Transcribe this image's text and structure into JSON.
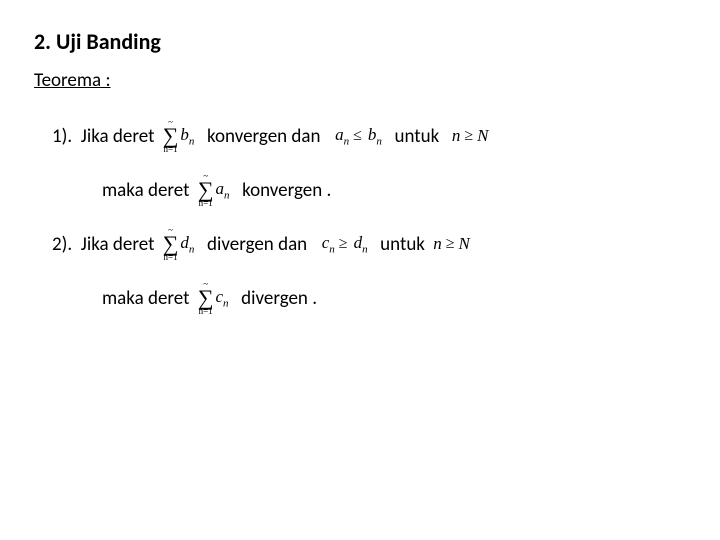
{
  "title": "2.  Uji Banding",
  "subtitle": "Teorema :",
  "words": {
    "item1_pre": "1).  Jika deret ",
    "item2_pre": "2).  Jika deret ",
    "maka_deret": "maka deret ",
    "konv_dan": "  konvergen dan  ",
    "konv_dot": "  konvergen .",
    "div_dan": "  divergen dan  ",
    "div_dot": "  divergen .",
    "untuk": "  untuk  ",
    "untuk2": "  untuk "
  },
  "math": {
    "sigma_lower_n1": "n=1",
    "sigma_upper": "~",
    "b_n": "b",
    "a_n": "a",
    "d_n": "d",
    "c_n": "c",
    "sub_n": "n",
    "le": "≤",
    "ge": "≥",
    "n": "n",
    "N": "N"
  },
  "style": {
    "text_color": "#000000",
    "background": "#ffffff",
    "base_fontsize": 19,
    "title_fontsize": 22
  }
}
